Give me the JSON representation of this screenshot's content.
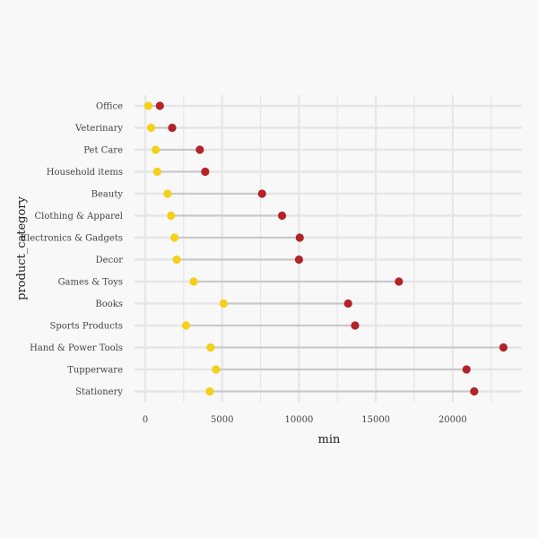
{
  "chart_data": {
    "type": "dumbbell",
    "title": "",
    "xlabel": "min",
    "ylabel": "product_category",
    "xlim": [
      -700,
      24500
    ],
    "x_ticks": [
      0,
      5000,
      10000,
      15000,
      20000
    ],
    "x_tick_labels": [
      "0",
      "5000",
      "10000",
      "15000",
      "20000"
    ],
    "grid": true,
    "legend": "none",
    "colors": {
      "start_point": "#f5cf1a",
      "end_point": "#b2232a",
      "segment": "#c8c8c8",
      "grid": "#e6e6e6",
      "background": "#f8f8f8"
    },
    "categories": [
      "Office",
      "Veterinary",
      "Pet Care",
      "Household items",
      "Beauty",
      "Clothing & Apparel",
      "Electronics & Gadgets",
      "Decor",
      "Games & Toys",
      "Books",
      "Sports Products",
      "Hand & Power Tools",
      "Tupperware",
      "Stationery"
    ],
    "series": [
      {
        "values": [
          200,
          380,
          680,
          780,
          1450,
          1680,
          1900,
          2050,
          3150,
          5100,
          2650,
          4250,
          4600,
          4200
        ]
      },
      {
        "values": [
          950,
          1750,
          3550,
          3900,
          7600,
          8900,
          10050,
          10000,
          16500,
          13200,
          13650,
          23300,
          20900,
          21400
        ]
      }
    ]
  }
}
